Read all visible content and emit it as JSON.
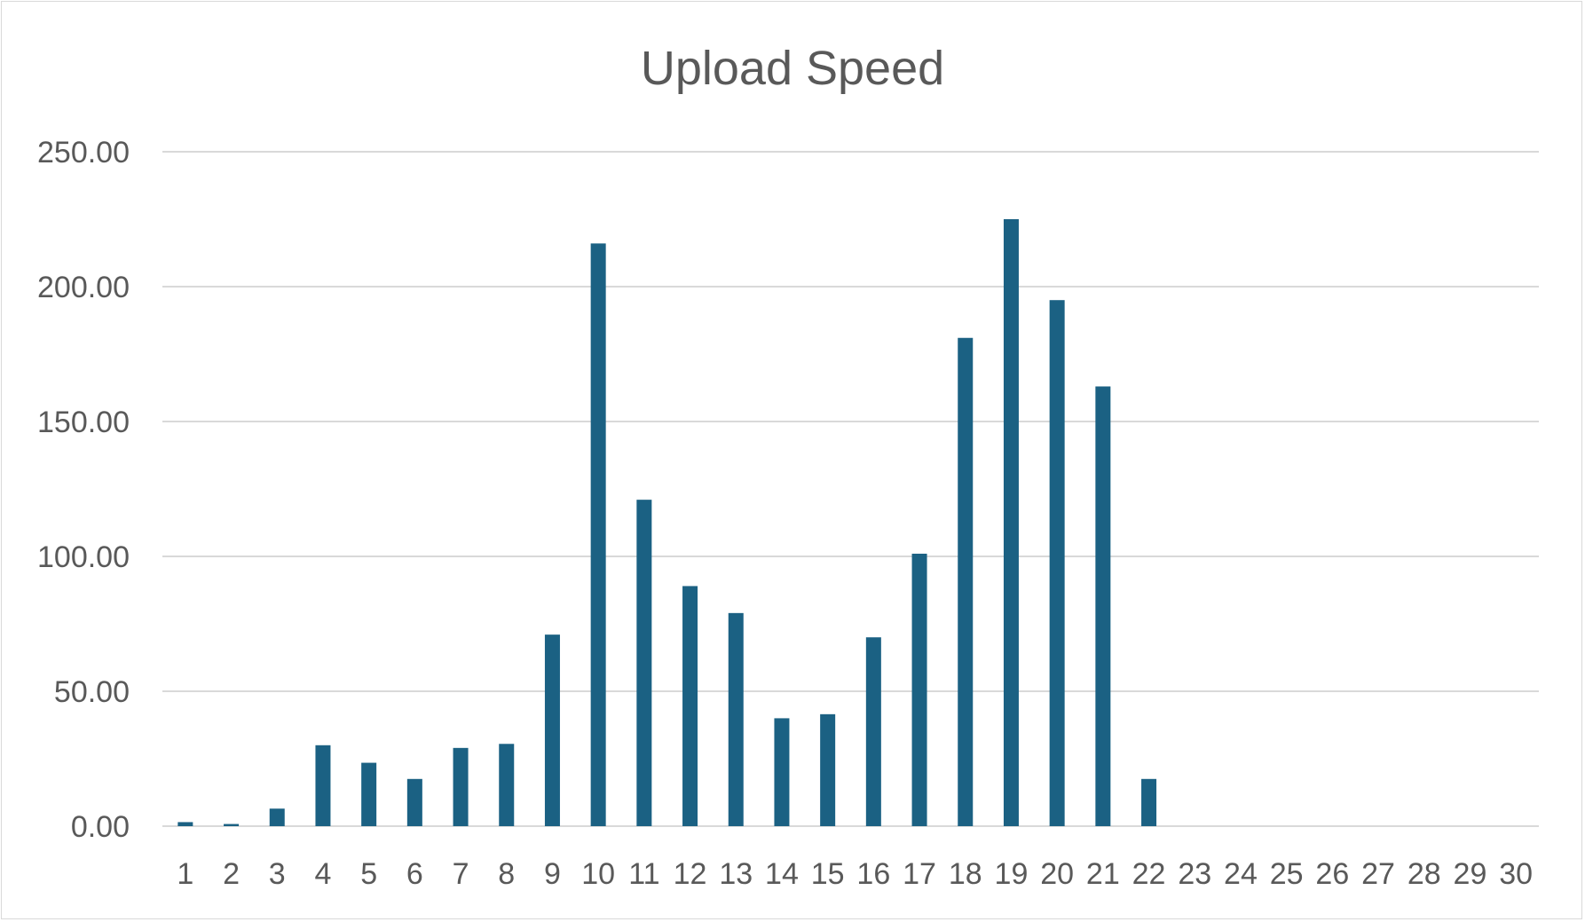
{
  "chart_data": {
    "type": "bar",
    "title": "Upload Speed",
    "xlabel": "",
    "ylabel": "",
    "ylim": [
      0,
      250
    ],
    "yticks": [
      "0.00",
      "50.00",
      "100.00",
      "150.00",
      "200.00",
      "250.00"
    ],
    "grid": true,
    "legend": "none",
    "bar_color": "#1b6183",
    "categories": [
      "1",
      "2",
      "3",
      "4",
      "5",
      "6",
      "7",
      "8",
      "9",
      "10",
      "11",
      "12",
      "13",
      "14",
      "15",
      "16",
      "17",
      "18",
      "19",
      "20",
      "21",
      "22",
      "23",
      "24",
      "25",
      "26",
      "27",
      "28",
      "29",
      "30"
    ],
    "values": [
      1.5,
      0.8,
      6.5,
      30,
      23.5,
      17.5,
      29,
      30.5,
      71,
      216,
      121,
      89,
      79,
      40,
      41.5,
      70,
      101,
      181,
      225,
      195,
      163,
      17.5,
      0,
      0,
      0,
      0,
      0,
      0,
      0,
      0
    ]
  }
}
